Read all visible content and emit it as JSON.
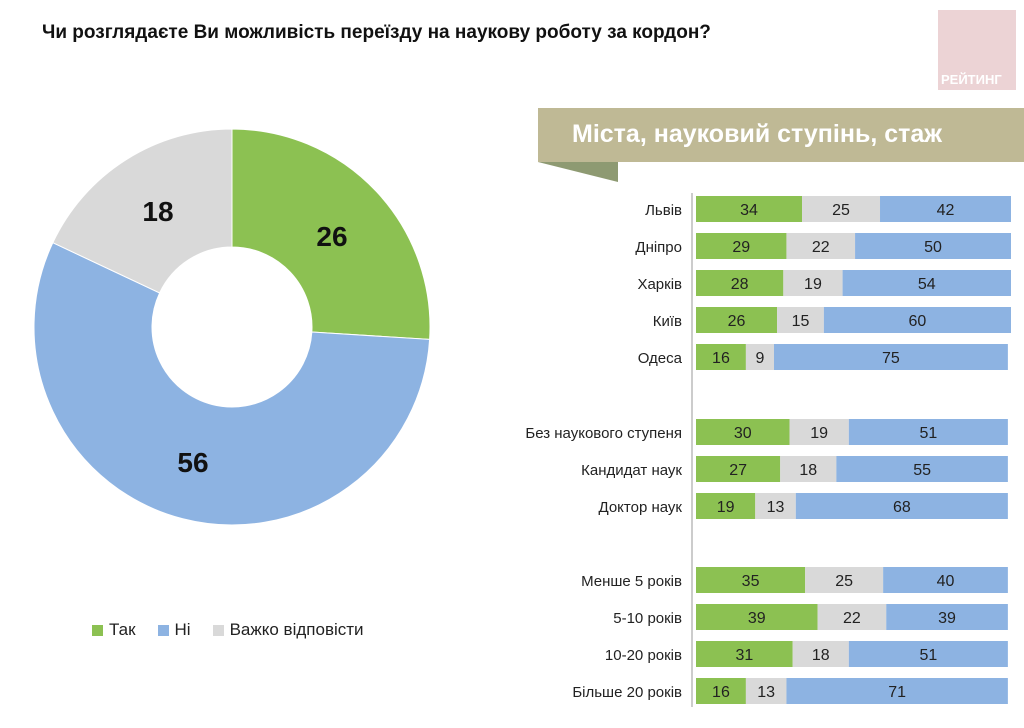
{
  "title": "Чи розглядаєте Ви можливість переїзду на наукову роботу за кордон?",
  "logo": "РЕЙТИНГ",
  "banner": "Міста, науковий ступінь, стаж",
  "colors": {
    "yes": "#8cc152",
    "no": "#8db3e2",
    "hard": "#d9d9d9"
  },
  "chart_data": [
    {
      "type": "pie",
      "donut": true,
      "series": [
        {
          "name": "Так",
          "value": 26
        },
        {
          "name": "Ні",
          "value": 56
        },
        {
          "name": "Важко відповісти",
          "value": 18
        }
      ],
      "legend": [
        "Так",
        "Ні",
        "Важко відповісти"
      ],
      "legend_position": "bottom"
    },
    {
      "type": "bar",
      "stacked": true,
      "orientation": "horizontal",
      "title": "Міста, науковий ступінь, стаж",
      "categories": [
        "Львів",
        "Дніпро",
        "Харків",
        "Київ",
        "Одеса",
        "Без наукового ступеня",
        "Кандидат наук",
        "Доктор наук",
        "Менше 5 років",
        "5-10 років",
        "10-20 років",
        "Більше 20 років"
      ],
      "groups": [
        [
          0,
          1,
          2,
          3,
          4
        ],
        [
          5,
          6,
          7
        ],
        [
          8,
          9,
          10,
          11
        ]
      ],
      "series": [
        {
          "name": "Так",
          "values": [
            34,
            29,
            28,
            26,
            16,
            30,
            27,
            19,
            35,
            39,
            31,
            16
          ]
        },
        {
          "name": "Важко відповісти",
          "values": [
            25,
            22,
            19,
            15,
            9,
            19,
            18,
            13,
            25,
            22,
            18,
            13
          ]
        },
        {
          "name": "Ні",
          "values": [
            42,
            50,
            54,
            60,
            75,
            51,
            55,
            68,
            40,
            39,
            51,
            71
          ]
        }
      ]
    }
  ]
}
